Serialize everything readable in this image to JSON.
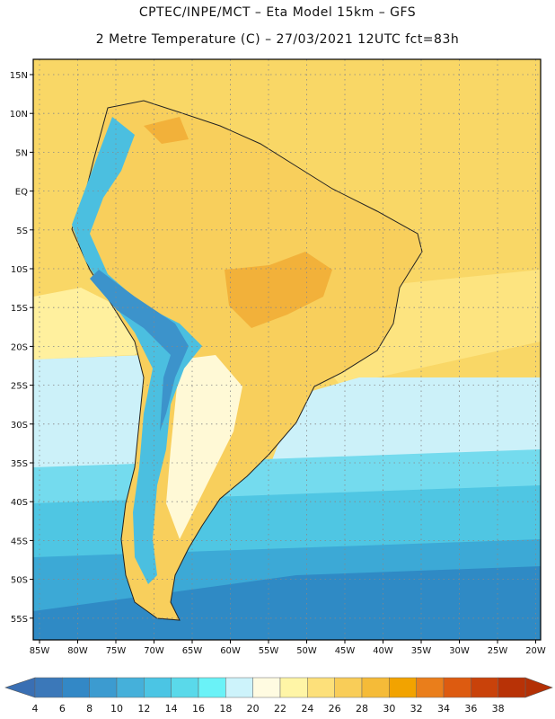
{
  "title": {
    "line1": "CPTEC/INPE/MCT –  Eta Model 15km – GFS",
    "line2": "2 Metre Temperature (C) – 27/03/2021 12UTC fct=83h"
  },
  "lat_labels": [
    "15N",
    "10N",
    "5N",
    "EQ",
    "5S",
    "10S",
    "15S",
    "20S",
    "25S",
    "30S",
    "35S",
    "40S",
    "45S",
    "50S",
    "55S"
  ],
  "lon_labels": [
    "85W",
    "80W",
    "75W",
    "70W",
    "65W",
    "60W",
    "55W",
    "50W",
    "45W",
    "40W",
    "35W",
    "30W",
    "25W",
    "20W"
  ],
  "colorbar": {
    "labels": [
      "4",
      "6",
      "8",
      "10",
      "12",
      "14",
      "16",
      "18",
      "20",
      "22",
      "24",
      "26",
      "28",
      "30",
      "32",
      "34",
      "36",
      "38"
    ],
    "colors": [
      "#3b78b9",
      "#3388c6",
      "#3c9bd0",
      "#45b0da",
      "#4bc5e4",
      "#5ad9ea",
      "#6af2f7",
      "#cdf3fb",
      "#fffbe1",
      "#fff5a6",
      "#fde07a",
      "#f9cd58",
      "#f5bb38",
      "#f2a300",
      "#ea7e1b",
      "#dd5b10",
      "#c9420a",
      "#b83206"
    ],
    "low_color": "#3a6fb3",
    "high_color": "#b33005"
  },
  "field_colors": {
    "ocean_tropical": "#f9d766",
    "ocean_subtropical": "#fde480",
    "ocean_warm_band": "#fff09e",
    "ocean_mild": "#ccf1f9",
    "ocean_cool": "#74dbee",
    "ocean_cold": "#4fc6e3",
    "ocean_colder": "#3ca9d6",
    "ocean_coldest": "#2f8ac5",
    "land_hot": "#f2b13a",
    "land_warm": "#f8cf5c",
    "andes": "#4bbfe0",
    "andes_high": "#3c93cb",
    "patagonia": "#fff9d6"
  }
}
